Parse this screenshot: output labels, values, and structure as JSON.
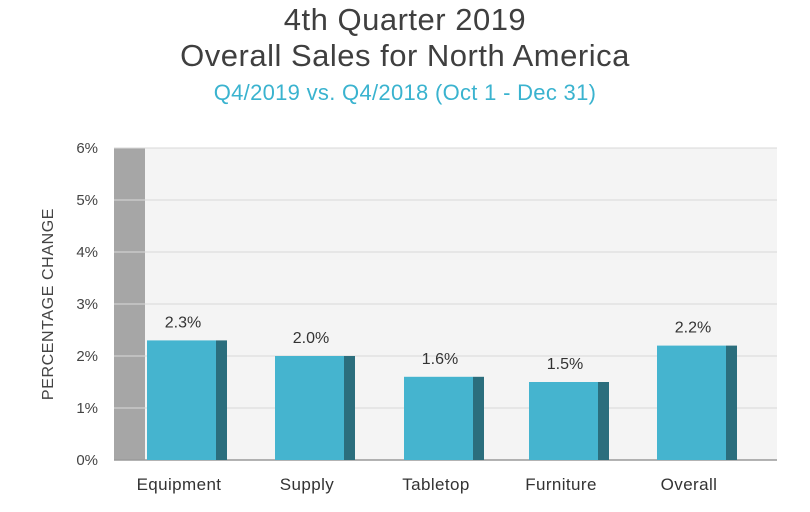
{
  "chart_data": {
    "type": "bar",
    "title": "4th Quarter 2019",
    "subtitle_line2": "Overall Sales for North America",
    "subtitle": "Q4/2019 vs. Q4/2018 (Oct 1 - Dec 31)",
    "ylabel": "PERCENTAGE CHANGE",
    "xlabel": "",
    "categories": [
      "Equipment",
      "Supply",
      "Tabletop",
      "Furniture",
      "Overall"
    ],
    "values": [
      2.3,
      2.0,
      1.6,
      1.5,
      2.2
    ],
    "data_labels": [
      "2.3%",
      "2.0%",
      "1.6%",
      "1.5%",
      "2.2%"
    ],
    "ylim": [
      0,
      6
    ],
    "yticks": [
      "0%",
      "1%",
      "2%",
      "3%",
      "4%",
      "5%",
      "6%"
    ],
    "grid": true,
    "colors": {
      "bar_front": "#45b4cf",
      "bar_side": "#2b6e7d",
      "plot_bg": "#f4f4f4",
      "wall": "#a6a6a6",
      "grid": "#d9d9d9",
      "subtitle": "#3ab3cf"
    }
  }
}
